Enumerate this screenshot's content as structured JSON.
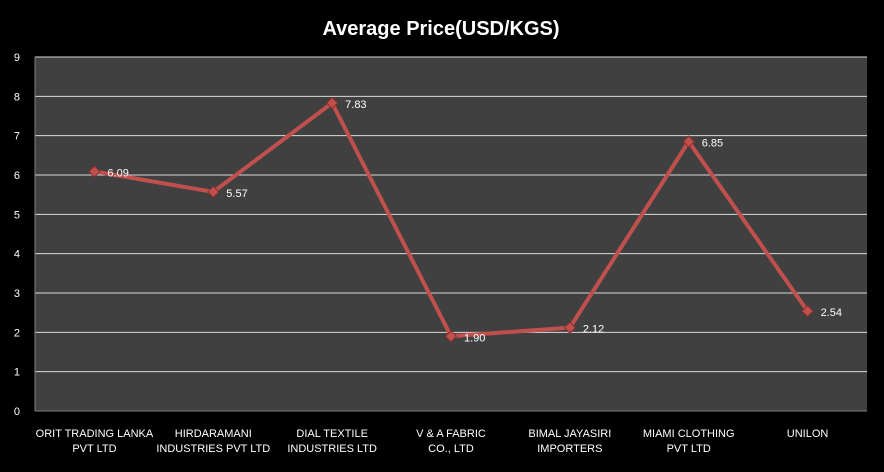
{
  "chart_data": {
    "type": "line",
    "title": "Average Price(USD/KGS)",
    "xlabel": "",
    "ylabel": "",
    "categories": [
      [
        "ORIT TRADING  LANKA",
        "PVT LTD"
      ],
      [
        "HIRDARAMANI",
        "INDUSTRIES  PVT LTD"
      ],
      [
        "DIAL TEXTILE",
        "INDUSTRIES  LTD"
      ],
      [
        "V & A FABRIC",
        "CO., LTD"
      ],
      [
        "BIMAL JAYASIRI",
        "IMPORTERS"
      ],
      [
        "MIAMI CLOTHING",
        "PVT LTD"
      ],
      [
        "UNILON"
      ]
    ],
    "values": [
      6.09,
      5.57,
      7.83,
      1.9,
      2.12,
      6.85,
      2.54
    ],
    "data_labels": [
      "6.09",
      "5.57",
      "7.83",
      "1.90",
      "2.12",
      "6.85",
      "2.54"
    ],
    "ylim": [
      0,
      9
    ],
    "yticks": [
      "0",
      "1",
      "2",
      "3",
      "4",
      "5",
      "6",
      "7",
      "8",
      "9"
    ],
    "grid": true,
    "legend": "none",
    "colors": {
      "background": "#000000",
      "plot_area": "#404040",
      "gridline": "#d9d9d9",
      "line": "#c0504d",
      "marker": "#c0504d",
      "text": "#ffffff"
    }
  }
}
